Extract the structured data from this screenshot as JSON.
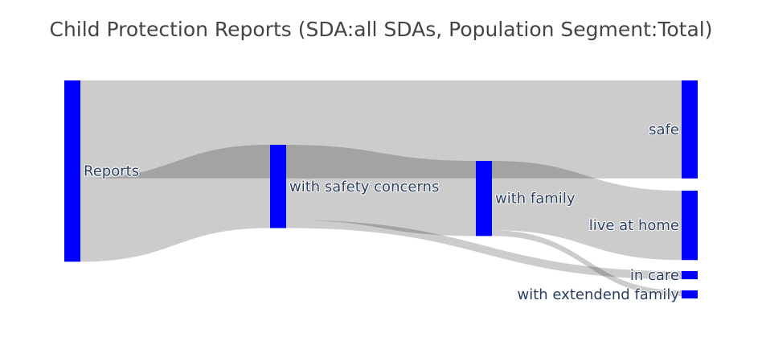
{
  "chart_data": {
    "type": "sankey",
    "title": "Child Protection Reports (SDA:all SDAs, Population Segment:Total)",
    "node_color": "#0000ff",
    "link_color": "#cccccc",
    "nodes": [
      {
        "id": "reports",
        "label": "Reports"
      },
      {
        "id": "concerns",
        "label": "with safety concerns"
      },
      {
        "id": "family",
        "label": "with family"
      },
      {
        "id": "safe",
        "label": "safe"
      },
      {
        "id": "home",
        "label": "live at home"
      },
      {
        "id": "care",
        "label": "in care"
      },
      {
        "id": "extended",
        "label": "with extendend family"
      }
    ],
    "links": [
      {
        "source": "reports",
        "target": "safe",
        "value": 120
      },
      {
        "source": "reports",
        "target": "concerns",
        "value": 102
      },
      {
        "source": "concerns",
        "target": "family",
        "value": 92
      },
      {
        "source": "concerns",
        "target": "care",
        "value": 10
      },
      {
        "source": "family",
        "target": "home",
        "value": 85
      },
      {
        "source": "family",
        "target": "extended",
        "value": 7
      }
    ]
  }
}
